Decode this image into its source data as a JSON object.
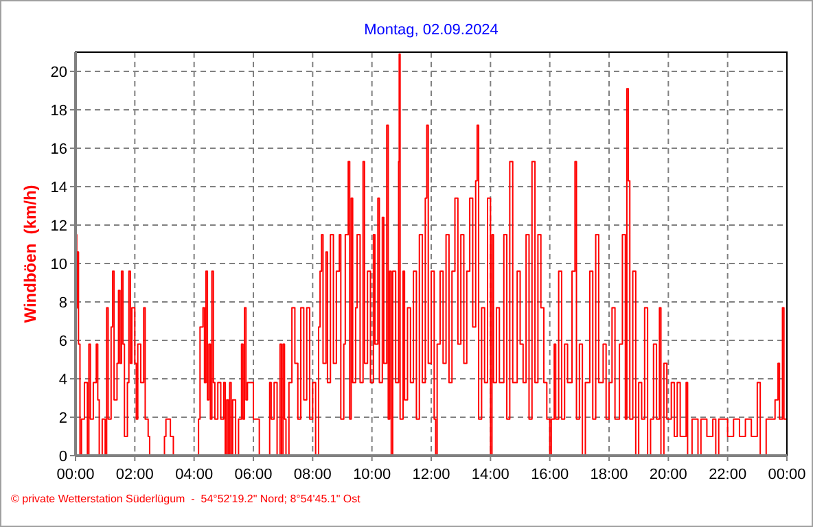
{
  "chart_data": {
    "type": "step",
    "title": "Montag, 02.09.2024",
    "ylabel": "Windböen  (km/h)",
    "annotations": [
      "© private Wetterstation Süderlügum  -  54°52'19.2\" Nord; 8°54'45.1\" Ost"
    ],
    "xlim": [
      0,
      24
    ],
    "ylim": [
      0,
      21
    ],
    "xticks": [
      {
        "value": 0,
        "label": "00:00"
      },
      {
        "value": 2,
        "label": "02:00"
      },
      {
        "value": 4,
        "label": "04:00"
      },
      {
        "value": 6,
        "label": "06:00"
      },
      {
        "value": 8,
        "label": "08:00"
      },
      {
        "value": 10,
        "label": "10:00"
      },
      {
        "value": 12,
        "label": "12:00"
      },
      {
        "value": 14,
        "label": "14:00"
      },
      {
        "value": 16,
        "label": "16:00"
      },
      {
        "value": 18,
        "label": "18:00"
      },
      {
        "value": 20,
        "label": "20:00"
      },
      {
        "value": 22,
        "label": "22:00"
      },
      {
        "value": 24,
        "label": "00:00"
      }
    ],
    "yticks": [
      0,
      2,
      4,
      6,
      8,
      10,
      12,
      14,
      16,
      18,
      20
    ],
    "grid": true,
    "line_style": "solid",
    "marker": "none",
    "series": [
      {
        "color": "#ff0000",
        "x": [
          0,
          0.02,
          0.04,
          0.06,
          0.1,
          0.15,
          0.2,
          0.3,
          0.4,
          0.45,
          0.5,
          0.6,
          0.7,
          0.75,
          0.8,
          0.9,
          1.0,
          1.05,
          1.1,
          1.2,
          1.25,
          1.3,
          1.4,
          1.45,
          1.5,
          1.55,
          1.6,
          1.65,
          1.75,
          1.8,
          1.85,
          1.9,
          2.0,
          2.05,
          2.1,
          2.2,
          2.3,
          2.35,
          2.45,
          2.5,
          3.0,
          3.05,
          3.2,
          3.3,
          4.15,
          4.2,
          4.3,
          4.35,
          4.4,
          4.45,
          4.5,
          4.55,
          4.6,
          4.65,
          4.7,
          4.8,
          4.9,
          5.0,
          5.05,
          5.1,
          5.15,
          5.2,
          5.25,
          5.3,
          5.4,
          5.5,
          5.6,
          5.65,
          5.7,
          5.75,
          5.8,
          6.0,
          6.2,
          6.55,
          6.6,
          6.7,
          6.8,
          6.9,
          6.95,
          7.0,
          7.05,
          7.1,
          7.2,
          7.3,
          7.4,
          7.5,
          7.6,
          7.7,
          7.8,
          7.9,
          8.0,
          8.1,
          8.2,
          8.25,
          8.3,
          8.35,
          8.45,
          8.5,
          8.6,
          8.7,
          8.8,
          8.9,
          8.95,
          9.05,
          9.1,
          9.2,
          9.25,
          9.3,
          9.35,
          9.45,
          9.5,
          9.6,
          9.7,
          9.75,
          9.85,
          9.95,
          10.05,
          10.1,
          10.2,
          10.25,
          10.35,
          10.4,
          10.5,
          10.55,
          10.6,
          10.65,
          10.7,
          10.8,
          10.9,
          10.92,
          10.95,
          11.05,
          11.1,
          11.2,
          11.3,
          11.4,
          11.5,
          11.6,
          11.7,
          11.8,
          11.85,
          11.9,
          12.0,
          12.1,
          12.15,
          12.2,
          12.3,
          12.4,
          12.5,
          12.6,
          12.7,
          12.8,
          12.9,
          13.0,
          13.1,
          13.2,
          13.3,
          13.4,
          13.5,
          13.55,
          13.6,
          13.7,
          13.8,
          13.9,
          14.0,
          14.05,
          14.1,
          14.2,
          14.3,
          14.45,
          14.55,
          14.65,
          14.75,
          14.9,
          15.0,
          15.1,
          15.2,
          15.3,
          15.4,
          15.5,
          15.6,
          15.7,
          15.8,
          15.9,
          16.0,
          16.05,
          16.15,
          16.2,
          16.3,
          16.4,
          16.5,
          16.6,
          16.75,
          16.85,
          16.9,
          17.0,
          17.1,
          17.2,
          17.35,
          17.45,
          17.55,
          17.65,
          17.8,
          17.9,
          18.0,
          18.1,
          18.2,
          18.35,
          18.45,
          18.55,
          18.6,
          18.65,
          18.7,
          18.8,
          18.9,
          19.0,
          19.1,
          19.2,
          19.3,
          19.4,
          19.5,
          19.6,
          19.7,
          19.75,
          19.85,
          19.95,
          20.1,
          20.2,
          20.3,
          20.4,
          20.6,
          20.65,
          20.8,
          21.0,
          21.1,
          21.3,
          21.5,
          21.6,
          21.7,
          22.0,
          22.2,
          22.4,
          22.6,
          22.8,
          23.0,
          23.1,
          23.3,
          23.6,
          23.7,
          23.75,
          23.85,
          23.9,
          24.0
        ],
        "values": [
          9.6,
          11.5,
          7.7,
          10.6,
          5.8,
          0,
          1.9,
          3.8,
          0,
          5.8,
          1.9,
          3.8,
          5.8,
          2.9,
          0,
          1.9,
          0,
          7.7,
          1.9,
          6.7,
          9.6,
          2.9,
          4.8,
          8.6,
          4.8,
          9.6,
          5.8,
          1.0,
          3.8,
          9.6,
          4.8,
          7.7,
          4.8,
          1.9,
          5.8,
          3.8,
          7.7,
          1.9,
          1.0,
          0,
          1.0,
          1.9,
          1.0,
          0,
          1.9,
          6.7,
          7.7,
          3.8,
          9.6,
          2.9,
          5.8,
          1.9,
          9.6,
          3.8,
          1.9,
          3.8,
          1.9,
          3.8,
          0,
          2.9,
          0,
          3.8,
          0,
          2.9,
          0,
          1.9,
          5.8,
          1.9,
          7.7,
          2.9,
          3.8,
          1.9,
          0,
          3.8,
          1.9,
          3.8,
          0,
          5.8,
          0,
          5.8,
          1.9,
          0,
          3.8,
          7.7,
          4.8,
          1.9,
          7.7,
          2.9,
          7.7,
          1.9,
          3.8,
          0,
          6.7,
          9.6,
          11.5,
          4.8,
          10.6,
          3.8,
          11.5,
          4.8,
          9.6,
          11.5,
          1.9,
          5.8,
          11.5,
          15.3,
          1.9,
          13.4,
          3.8,
          7.7,
          11.5,
          3.8,
          15.3,
          4.8,
          9.6,
          3.8,
          11.5,
          5.8,
          13.4,
          3.8,
          12.4,
          4.8,
          17.2,
          1.9,
          9.6,
          0,
          9.6,
          3.8,
          15.3,
          20.9,
          1.9,
          9.6,
          2.9,
          7.7,
          3.8,
          9.6,
          1.9,
          11.5,
          3.8,
          13.4,
          17.2,
          4.8,
          9.6,
          1.9,
          0,
          5.8,
          9.6,
          4.8,
          11.5,
          3.8,
          9.6,
          13.4,
          5.8,
          11.5,
          4.8,
          9.6,
          13.4,
          6.7,
          14.3,
          17.2,
          1.9,
          7.7,
          3.8,
          13.4,
          0,
          11.5,
          3.8,
          7.7,
          3.8,
          11.5,
          1.9,
          15.3,
          3.8,
          9.6,
          5.8,
          3.8,
          11.5,
          1.9,
          15.3,
          3.8,
          11.5,
          7.7,
          3.8,
          1.9,
          0,
          1.9,
          5.8,
          1.9,
          9.6,
          1.9,
          5.8,
          3.8,
          9.6,
          15.3,
          1.9,
          5.8,
          0,
          3.8,
          9.6,
          1.9,
          11.5,
          3.8,
          5.8,
          1.9,
          3.8,
          7.7,
          1.9,
          5.8,
          11.5,
          1.9,
          19.1,
          14.3,
          1.9,
          9.6,
          0,
          3.8,
          1.9,
          7.7,
          0,
          1.9,
          5.8,
          1.9,
          7.7,
          0,
          4.8,
          1.9,
          3.8,
          1.0,
          3.8,
          1.0,
          3.8,
          0,
          1.9,
          0,
          1.9,
          1.0,
          1.9,
          0,
          1.9,
          1.0,
          1.9,
          1.0,
          1.9,
          1.0,
          3.8,
          0,
          1.9,
          2.9,
          4.8,
          1.9,
          7.7,
          1.9,
          1.9
        ]
      }
    ]
  }
}
